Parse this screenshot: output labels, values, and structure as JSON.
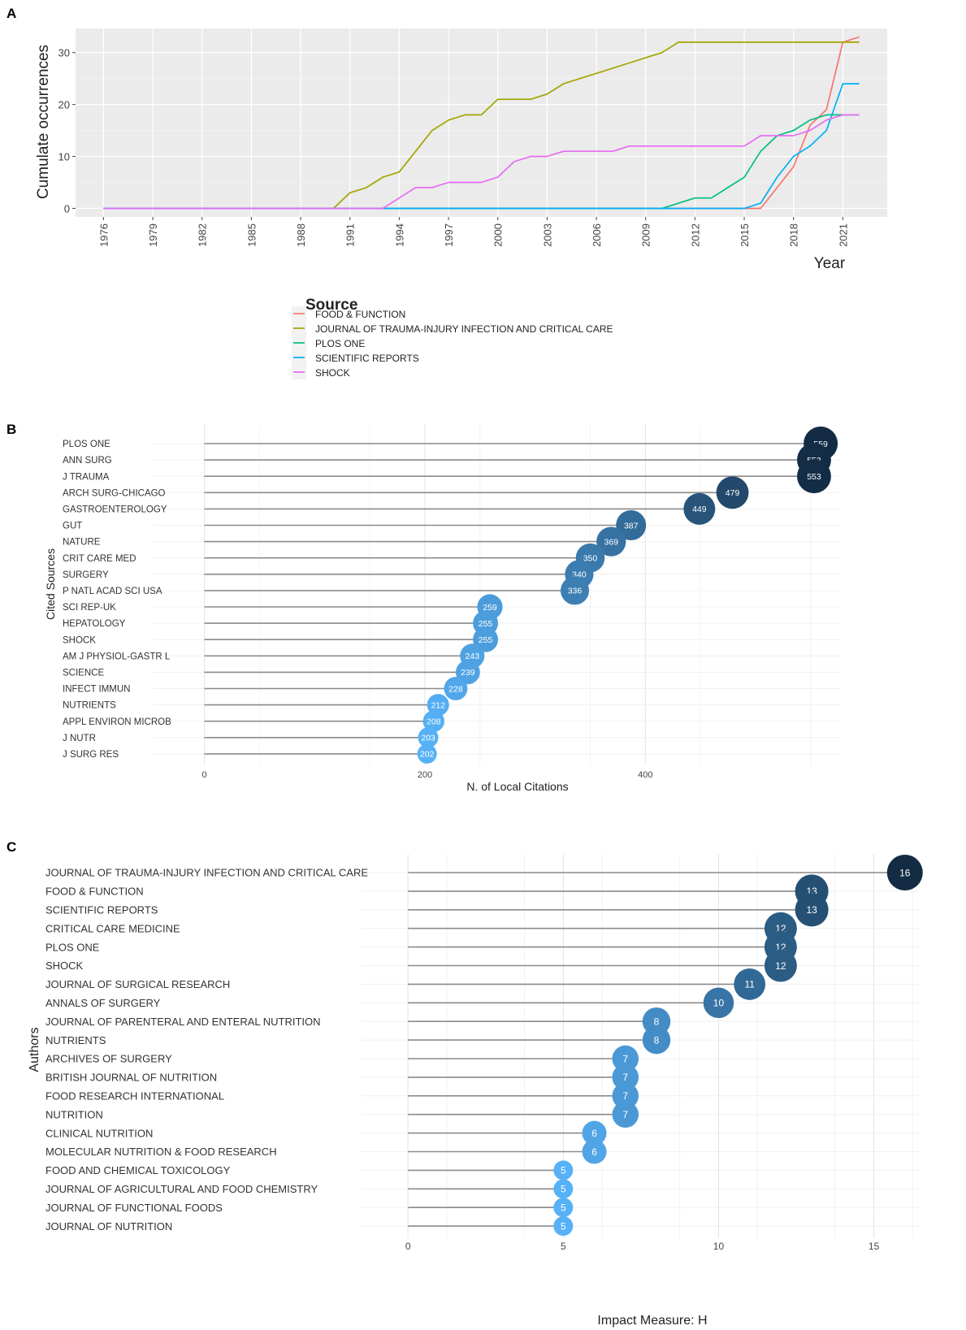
{
  "colors": {
    "panel_bg": "#ebebeb",
    "grid_major": "#ffffff",
    "stick": "#8a8a8a",
    "bubble_dark": "#132b43",
    "bubble_light": "#56b1f7"
  },
  "chart_data": [
    {
      "panel": "A",
      "type": "line",
      "title": "",
      "xlabel": "Year",
      "ylabel": "Cumulate occurrences",
      "x_ticks": [
        "1976",
        "1979",
        "1982",
        "1985",
        "1988",
        "1991",
        "1994",
        "1997",
        "2000",
        "2003",
        "2006",
        "2009",
        "2012",
        "2015",
        "2018",
        "2021"
      ],
      "y_ticks": [
        "0",
        "10",
        "20",
        "30"
      ],
      "xlim": [
        1974.3,
        2023.7
      ],
      "ylim": [
        -1.65,
        34.65
      ],
      "legend_title": "Source",
      "legend_position": "bottom",
      "series": [
        {
          "name": "FOOD & FUNCTION",
          "color": "#f8766d",
          "x": [
            1976,
            2015,
            2016,
            2017,
            2018,
            2019,
            2020,
            2021,
            2022
          ],
          "y": [
            0,
            0,
            0,
            4,
            8,
            16,
            19,
            32,
            33
          ]
        },
        {
          "name": "JOURNAL OF TRAUMA-INJURY INFECTION AND CRITICAL CARE",
          "color": "#a3a500",
          "x": [
            1976,
            1990,
            1991,
            1992,
            1993,
            1994,
            1995,
            1996,
            1997,
            1998,
            1999,
            2000,
            2001,
            2002,
            2003,
            2004,
            2005,
            2006,
            2007,
            2008,
            2009,
            2010,
            2011,
            2012,
            2022
          ],
          "y": [
            0,
            0,
            3,
            4,
            6,
            7,
            11,
            15,
            17,
            18,
            18,
            21,
            21,
            21,
            22,
            24,
            25,
            26,
            27,
            28,
            29,
            30,
            32,
            32,
            32
          ]
        },
        {
          "name": "PLOS ONE",
          "color": "#00bf7d",
          "x": [
            1976,
            2010,
            2011,
            2012,
            2013,
            2014,
            2015,
            2016,
            2017,
            2018,
            2019,
            2020,
            2021,
            2022
          ],
          "y": [
            0,
            0,
            1,
            2,
            2,
            4,
            6,
            11,
            14,
            15,
            17,
            18,
            18,
            18
          ]
        },
        {
          "name": "SCIENTIFIC REPORTS",
          "color": "#00b0f6",
          "x": [
            1976,
            2015,
            2016,
            2017,
            2018,
            2019,
            2020,
            2021,
            2022
          ],
          "y": [
            0,
            0,
            1,
            6,
            10,
            12,
            15,
            24,
            24
          ]
        },
        {
          "name": "SHOCK",
          "color": "#e76bf3",
          "x": [
            1976,
            1993,
            1994,
            1995,
            1996,
            1997,
            1998,
            1999,
            2000,
            2001,
            2002,
            2003,
            2004,
            2005,
            2006,
            2007,
            2008,
            2009,
            2010,
            2011,
            2012,
            2013,
            2014,
            2015,
            2016,
            2017,
            2018,
            2019,
            2020,
            2021,
            2022
          ],
          "y": [
            0,
            0,
            2,
            4,
            4,
            5,
            5,
            5,
            6,
            9,
            10,
            10,
            11,
            11,
            11,
            11,
            12,
            12,
            12,
            12,
            12,
            12,
            12,
            12,
            14,
            14,
            14,
            15,
            17,
            18,
            18
          ]
        }
      ]
    },
    {
      "panel": "B",
      "type": "lollipop",
      "xlabel": "N. of Local Citations",
      "ylabel": "Cited Sources",
      "x_ticks": [
        "0",
        "200",
        "400"
      ],
      "xlim": [
        -16.6,
        576.6
      ],
      "vmin": 202,
      "vmax": 559,
      "categories": [
        "PLOS ONE",
        "ANN SURG",
        "J TRAUMA",
        "ARCH SURG-CHICAGO",
        "GASTROENTEROLOGY",
        "GUT",
        "NATURE",
        "CRIT CARE MED",
        "SURGERY",
        "P NATL ACAD SCI USA",
        "SCI REP-UK",
        "HEPATOLOGY",
        "SHOCK",
        "AM J PHYSIOL-GASTR L",
        "SCIENCE",
        "INFECT IMMUN",
        "NUTRIENTS",
        "APPL ENVIRON MICROB",
        "J NUTR",
        "J SURG RES"
      ],
      "values": [
        559,
        553,
        553,
        479,
        449,
        387,
        369,
        350,
        340,
        336,
        259,
        255,
        255,
        243,
        239,
        228,
        212,
        208,
        203,
        202
      ]
    },
    {
      "panel": "C",
      "type": "lollipop",
      "xlabel": "Impact Measure: H",
      "ylabel": "Authors",
      "x_ticks": [
        "0",
        "5",
        "10",
        "15"
      ],
      "xlim": [
        -0.45,
        16.45
      ],
      "vmin": 5,
      "vmax": 16,
      "categories": [
        "JOURNAL OF TRAUMA-INJURY INFECTION AND CRITICAL CARE",
        "FOOD & FUNCTION",
        "SCIENTIFIC REPORTS",
        "CRITICAL CARE MEDICINE",
        "PLOS ONE",
        "SHOCK",
        "JOURNAL OF SURGICAL RESEARCH",
        "ANNALS OF SURGERY",
        "JOURNAL OF PARENTERAL AND ENTERAL NUTRITION",
        "NUTRIENTS",
        "ARCHIVES OF SURGERY",
        "BRITISH JOURNAL OF NUTRITION",
        "FOOD RESEARCH INTERNATIONAL",
        "NUTRITION",
        "CLINICAL NUTRITION",
        "MOLECULAR NUTRITION & FOOD RESEARCH",
        "FOOD AND CHEMICAL TOXICOLOGY",
        "JOURNAL OF AGRICULTURAL AND FOOD CHEMISTRY",
        "JOURNAL OF FUNCTIONAL FOODS",
        "JOURNAL OF NUTRITION"
      ],
      "values": [
        16,
        13,
        13,
        12,
        12,
        12,
        11,
        10,
        8,
        8,
        7,
        7,
        7,
        7,
        6,
        6,
        5,
        5,
        5,
        5
      ]
    }
  ]
}
